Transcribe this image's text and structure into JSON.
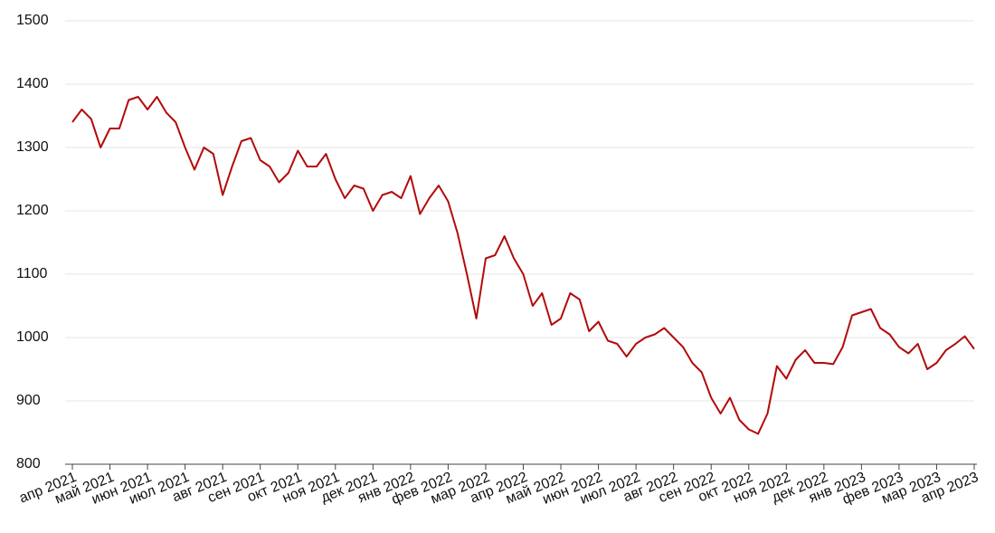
{
  "chart_data": {
    "type": "line",
    "categories": [
      "апр 2021",
      null,
      null,
      null,
      "май 2021",
      null,
      null,
      null,
      "июн 2021",
      null,
      null,
      null,
      "июл 2021",
      null,
      null,
      null,
      "авг 2021",
      null,
      null,
      null,
      "сен 2021",
      null,
      null,
      null,
      "окт 2021",
      null,
      null,
      null,
      "ноя 2021",
      null,
      null,
      null,
      "дек 2021",
      null,
      null,
      null,
      "янв 2022",
      null,
      null,
      null,
      "фев 2022",
      null,
      null,
      null,
      "мар 2022",
      null,
      null,
      null,
      "апр 2022",
      null,
      null,
      null,
      "май 2022",
      null,
      null,
      null,
      "июн 2022",
      null,
      null,
      null,
      "июл 2022",
      null,
      null,
      null,
      "авг 2022",
      null,
      null,
      null,
      "сен 2022",
      null,
      null,
      null,
      "окт 2022",
      null,
      null,
      null,
      "ноя 2022",
      null,
      null,
      null,
      "дек 2022",
      null,
      null,
      null,
      "янв 2023",
      null,
      null,
      null,
      "фев 2023",
      null,
      null,
      null,
      "мар 2023",
      null,
      null,
      null,
      "апр 2023"
    ],
    "values": [
      1340,
      1360,
      1345,
      1300,
      1330,
      1330,
      1375,
      1380,
      1360,
      1380,
      1355,
      1340,
      1300,
      1265,
      1300,
      1290,
      1225,
      1270,
      1310,
      1315,
      1280,
      1270,
      1245,
      1260,
      1295,
      1270,
      1270,
      1290,
      1250,
      1220,
      1240,
      1235,
      1200,
      1225,
      1230,
      1220,
      1255,
      1195,
      1220,
      1240,
      1215,
      1165,
      1100,
      1030,
      1125,
      1130,
      1160,
      1125,
      1100,
      1050,
      1070,
      1020,
      1030,
      1070,
      1060,
      1010,
      1025,
      995,
      990,
      970,
      990,
      1000,
      1005,
      1015,
      1000,
      985,
      960,
      945,
      905,
      880,
      905,
      870,
      855,
      848,
      880,
      955,
      935,
      965,
      980,
      960,
      960,
      958,
      985,
      1035,
      1040,
      1045,
      1015,
      1005,
      985,
      975,
      990,
      950,
      960,
      980,
      990,
      1002,
      982
    ],
    "color": "#b30b0b",
    "ylim": [
      800,
      1500
    ],
    "yticks": [
      800,
      900,
      1000,
      1100,
      1200,
      1300,
      1400,
      1500
    ],
    "grid": true
  }
}
